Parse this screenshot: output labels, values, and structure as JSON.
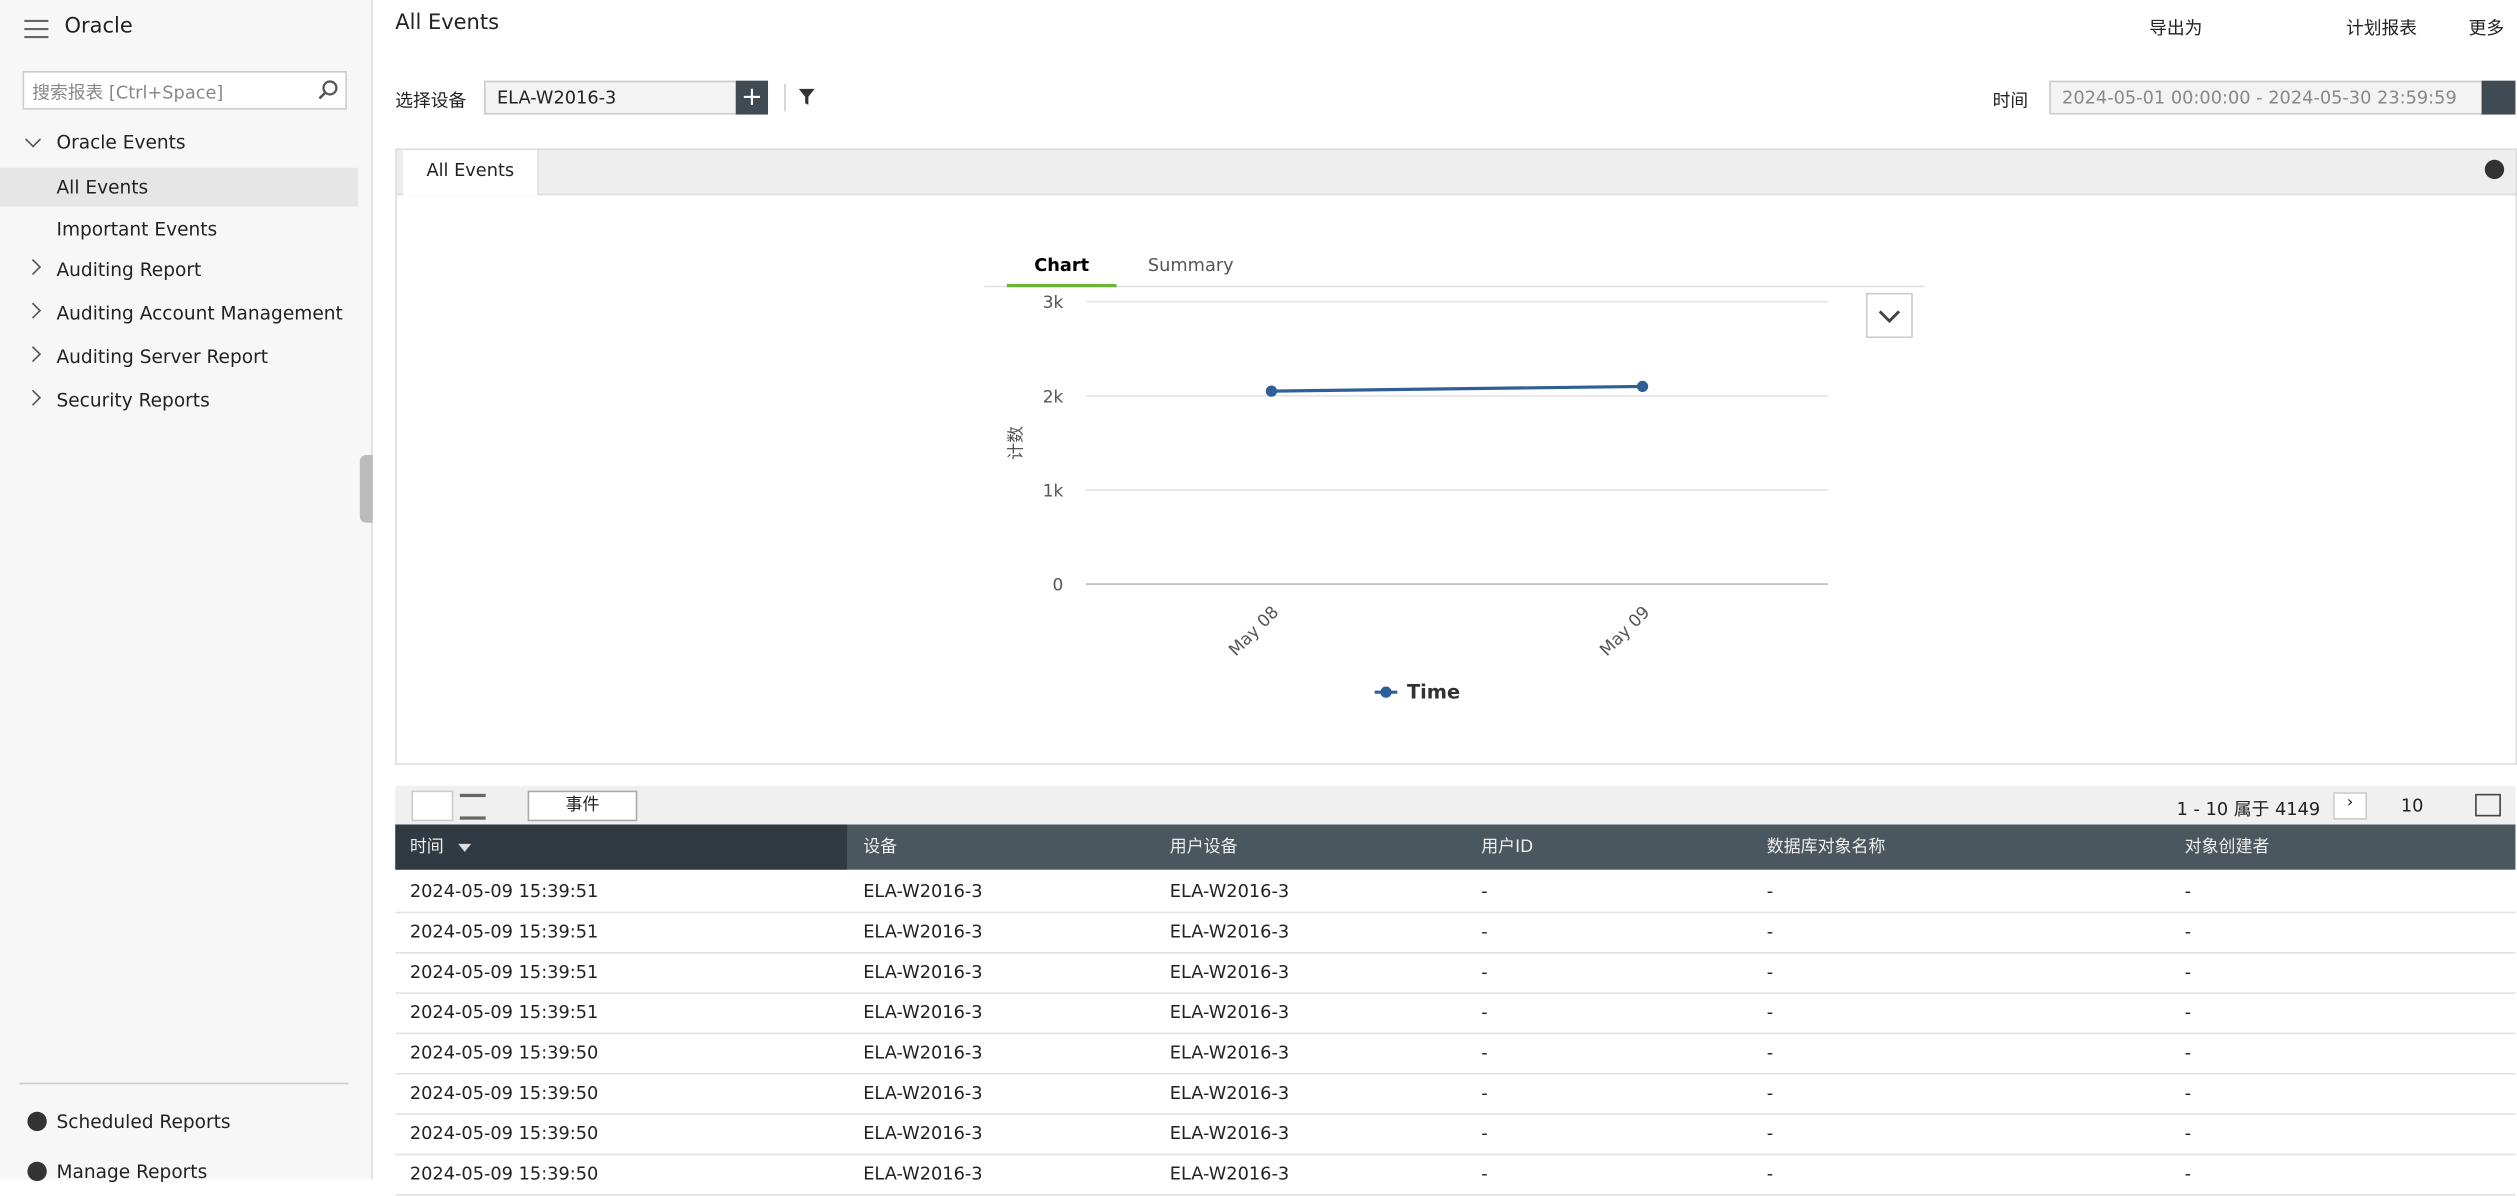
{
  "sidebar": {
    "app": "Oracle",
    "search_placeholder": "搜索报表 [Ctrl+Space]",
    "nav": [
      {
        "label": "Oracle Events",
        "expanded": true,
        "children": [
          "All Events",
          "Important Events"
        ]
      },
      {
        "label": "Auditing Report"
      },
      {
        "label": "Auditing Account Management"
      },
      {
        "label": "Auditing Server Report"
      },
      {
        "label": "Security Reports"
      }
    ],
    "footer": [
      "Scheduled Reports",
      "Manage Reports"
    ]
  },
  "header": {
    "title": "All Events",
    "actions": [
      "导出为",
      "计划报表",
      "更多"
    ]
  },
  "toolbar": {
    "device_label": "选择设备",
    "device": "ELA-W2016-3",
    "time_label": "时间",
    "time_range": "2024-05-01 00:00:00 - 2024-05-30 23:59:59"
  },
  "panel": {
    "tab": "All Events",
    "view_tabs": [
      "Chart",
      "Summary"
    ]
  },
  "chart_data": {
    "type": "line",
    "y_label": "计数",
    "categories": [
      "May 08",
      "May 09"
    ],
    "series": [
      {
        "name": "Time",
        "color": "#2f5f96",
        "values": [
          2050,
          2100
        ]
      }
    ],
    "ylim": [
      0,
      3000
    ],
    "yticks": [
      0,
      {
        "value": 1000,
        "label": "1k"
      },
      {
        "value": 2000,
        "label": "2k"
      },
      {
        "value": 3000,
        "label": "3k"
      }
    ],
    "grid": true
  },
  "table": {
    "filter_button": "事件",
    "pagination": "1 - 10 属于 4149",
    "page_size": "10",
    "columns": [
      "时间",
      "设备",
      "用户设备",
      "用户ID",
      "数据库对象名称",
      "对象创建者"
    ],
    "rows": [
      [
        "2024-05-09 15:39:51",
        "ELA-W2016-3",
        "ELA-W2016-3",
        "-",
        "-",
        "-"
      ],
      [
        "2024-05-09 15:39:51",
        "ELA-W2016-3",
        "ELA-W2016-3",
        "-",
        "-",
        "-"
      ],
      [
        "2024-05-09 15:39:51",
        "ELA-W2016-3",
        "ELA-W2016-3",
        "-",
        "-",
        "-"
      ],
      [
        "2024-05-09 15:39:51",
        "ELA-W2016-3",
        "ELA-W2016-3",
        "-",
        "-",
        "-"
      ],
      [
        "2024-05-09 15:39:50",
        "ELA-W2016-3",
        "ELA-W2016-3",
        "-",
        "-",
        "-"
      ],
      [
        "2024-05-09 15:39:50",
        "ELA-W2016-3",
        "ELA-W2016-3",
        "-",
        "-",
        "-"
      ],
      [
        "2024-05-09 15:39:50",
        "ELA-W2016-3",
        "ELA-W2016-3",
        "-",
        "-",
        "-"
      ],
      [
        "2024-05-09 15:39:50",
        "ELA-W2016-3",
        "ELA-W2016-3",
        "-",
        "-",
        "-"
      ]
    ]
  }
}
